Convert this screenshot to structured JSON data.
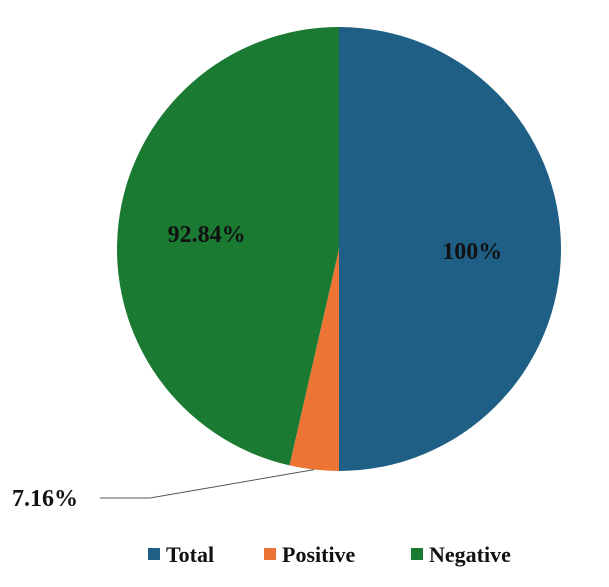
{
  "chart_data": {
    "type": "pie",
    "categories": [
      "Total",
      "Positive",
      "Negative"
    ],
    "values": [
      50,
      3.58,
      46.42
    ],
    "data_labels": [
      "100%",
      "7.16%",
      "92.84%"
    ],
    "colors": [
      "#1f5f86",
      "#ec7535",
      "#1b7a32"
    ],
    "title": "",
    "legend": {
      "position": "bottom",
      "entries": [
        "Total",
        "Positive",
        "Negative"
      ]
    }
  }
}
